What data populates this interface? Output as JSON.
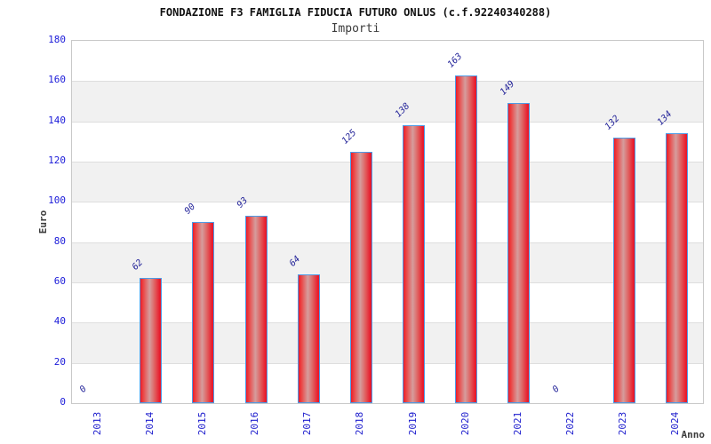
{
  "header": {
    "title": "FONDAZIONE F3 FAMIGLIA FIDUCIA FUTURO ONLUS (c.f.92240340288)",
    "subtitle": "Importi"
  },
  "chart_data": {
    "type": "bar",
    "title": "FONDAZIONE F3 FAMIGLIA FIDUCIA FUTURO ONLUS (c.f.92240340288)",
    "subtitle": "Importi",
    "xlabel": "Anno",
    "ylabel": "Euro",
    "categories": [
      "2013",
      "2014",
      "2015",
      "2016",
      "2017",
      "2018",
      "2019",
      "2020",
      "2021",
      "2022",
      "2023",
      "2024"
    ],
    "values": [
      0,
      62,
      90,
      93,
      64,
      125,
      138,
      163,
      149,
      0,
      132,
      134
    ],
    "ylim": [
      0,
      180
    ],
    "ytick_step": 20,
    "yticks": [
      0,
      20,
      40,
      60,
      80,
      100,
      120,
      140,
      160,
      180
    ],
    "legend": "none",
    "grid": "horizontal gridlines every 20 with alternating white/gray bands",
    "value_labels": "shown above each bar, rotated 45deg",
    "xtick_rotation": -90,
    "colors": {
      "bar_edge": "#ea1c2c",
      "bar_center": "#d59d9d",
      "bar_border": "#4d9be6",
      "tick_text": "#1a1ad9",
      "value_label_text": "#232399",
      "band_gray": "#f1f1f1",
      "gridline": "#dedede",
      "plot_border": "#c9c9c9",
      "axis_label_text": "#3c3c3c",
      "title_text": "#111111",
      "background": "#ffffff"
    }
  }
}
